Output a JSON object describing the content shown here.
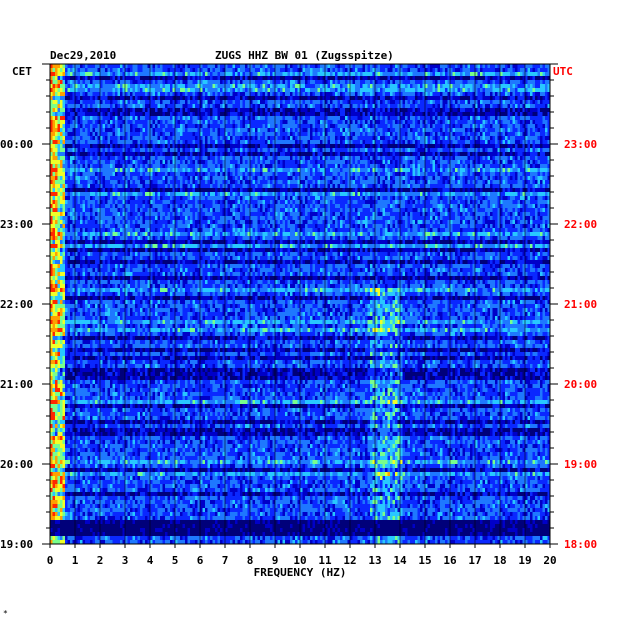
{
  "chart_data": {
    "type": "heatmap",
    "date": "Dec29,2010",
    "title": "ZUGS HHZ BW 01 (Zugsspitze)",
    "left_axis_label": "CET",
    "right_axis_label": "UTC",
    "xlabel": "FREQUENCY (HZ)",
    "xlim": [
      0,
      20
    ],
    "x_ticks": [
      "0",
      "1",
      "2",
      "3",
      "4",
      "5",
      "6",
      "7",
      "8",
      "9",
      "10",
      "11",
      "12",
      "13",
      "14",
      "15",
      "16",
      "17",
      "18",
      "19",
      "20"
    ],
    "y_ticks_cet": [
      "00:00",
      "23:00",
      "22:00",
      "21:00",
      "20:00",
      "19:00"
    ],
    "y_ticks_utc": [
      "23:00",
      "22:00",
      "21:00",
      "20:00",
      "19:00",
      "18:00"
    ],
    "colorscale": [
      "#00007a",
      "#0000c8",
      "#0a28ff",
      "#1e78ff",
      "#28c8ff",
      "#78ff8c",
      "#f0ff28",
      "#ffa000",
      "#ff2800"
    ],
    "colors": {
      "background": "#ffffff",
      "utc_text": "#ff0000",
      "axis": "#000000"
    },
    "corner_mark": "*"
  }
}
